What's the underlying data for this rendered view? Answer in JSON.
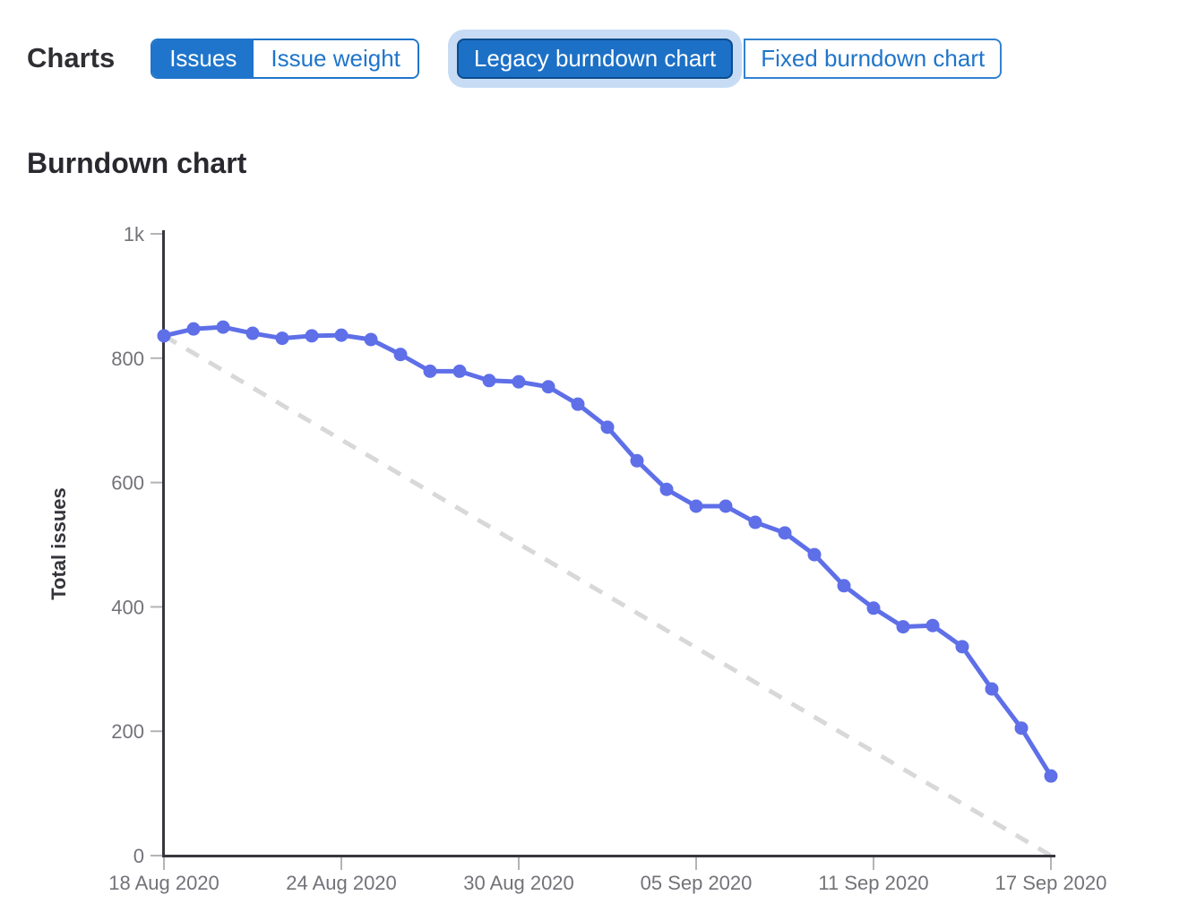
{
  "toolbar": {
    "section_label": "Charts",
    "metric_toggle": {
      "options": [
        {
          "label": "Issues",
          "selected": true
        },
        {
          "label": "Issue weight",
          "selected": false
        }
      ]
    },
    "chart_type_toggle": {
      "options": [
        {
          "label": "Legacy burndown chart",
          "selected": true,
          "focused": true
        },
        {
          "label": "Fixed burndown chart",
          "selected": false
        }
      ]
    }
  },
  "chart": {
    "heading": "Burndown chart"
  },
  "chart_data": {
    "type": "line",
    "title": "Burndown chart",
    "xlabel": "",
    "ylabel": "Total issues",
    "ylim": [
      0,
      1000
    ],
    "x_unit": "day",
    "x_range_days": [
      0,
      30
    ],
    "grid": false,
    "legend": "none",
    "y_ticks": [
      {
        "value": 0,
        "label": "0"
      },
      {
        "value": 200,
        "label": "200"
      },
      {
        "value": 400,
        "label": "400"
      },
      {
        "value": 600,
        "label": "600"
      },
      {
        "value": 800,
        "label": "800"
      },
      {
        "value": 1000,
        "label": "1k"
      }
    ],
    "x_ticks": [
      {
        "day": 0,
        "label": "18 Aug 2020"
      },
      {
        "day": 6,
        "label": "24 Aug 2020"
      },
      {
        "day": 12,
        "label": "30 Aug 2020"
      },
      {
        "day": 18,
        "label": "05 Sep 2020"
      },
      {
        "day": 24,
        "label": "11 Sep 2020"
      },
      {
        "day": 30,
        "label": "17 Sep 2020"
      }
    ],
    "series": [
      {
        "name": "Open issues",
        "type": "line",
        "color": "#5e6fe8",
        "show_points": true,
        "values": [
          836,
          847,
          850,
          840,
          832,
          836,
          837,
          830,
          806,
          779,
          779,
          764,
          762,
          754,
          726,
          689,
          635,
          589,
          562,
          562,
          536,
          519,
          484,
          434,
          398,
          368,
          370,
          336,
          268,
          205,
          128
        ]
      },
      {
        "name": "Ideal guideline",
        "type": "dashed",
        "color": "#d8d8d8",
        "show_points": false,
        "points": [
          [
            0,
            836
          ],
          [
            30,
            0
          ]
        ]
      }
    ],
    "colors": {
      "axis": "#38373d",
      "tick_mark": "#b4b4b8",
      "tick_text": "#737278",
      "accent_blue": "#1f75cb",
      "selected_button_fill": "#1c70c6",
      "selected_button_border": "#0d4c8c",
      "focus_ring": "#c7dcf4"
    }
  }
}
